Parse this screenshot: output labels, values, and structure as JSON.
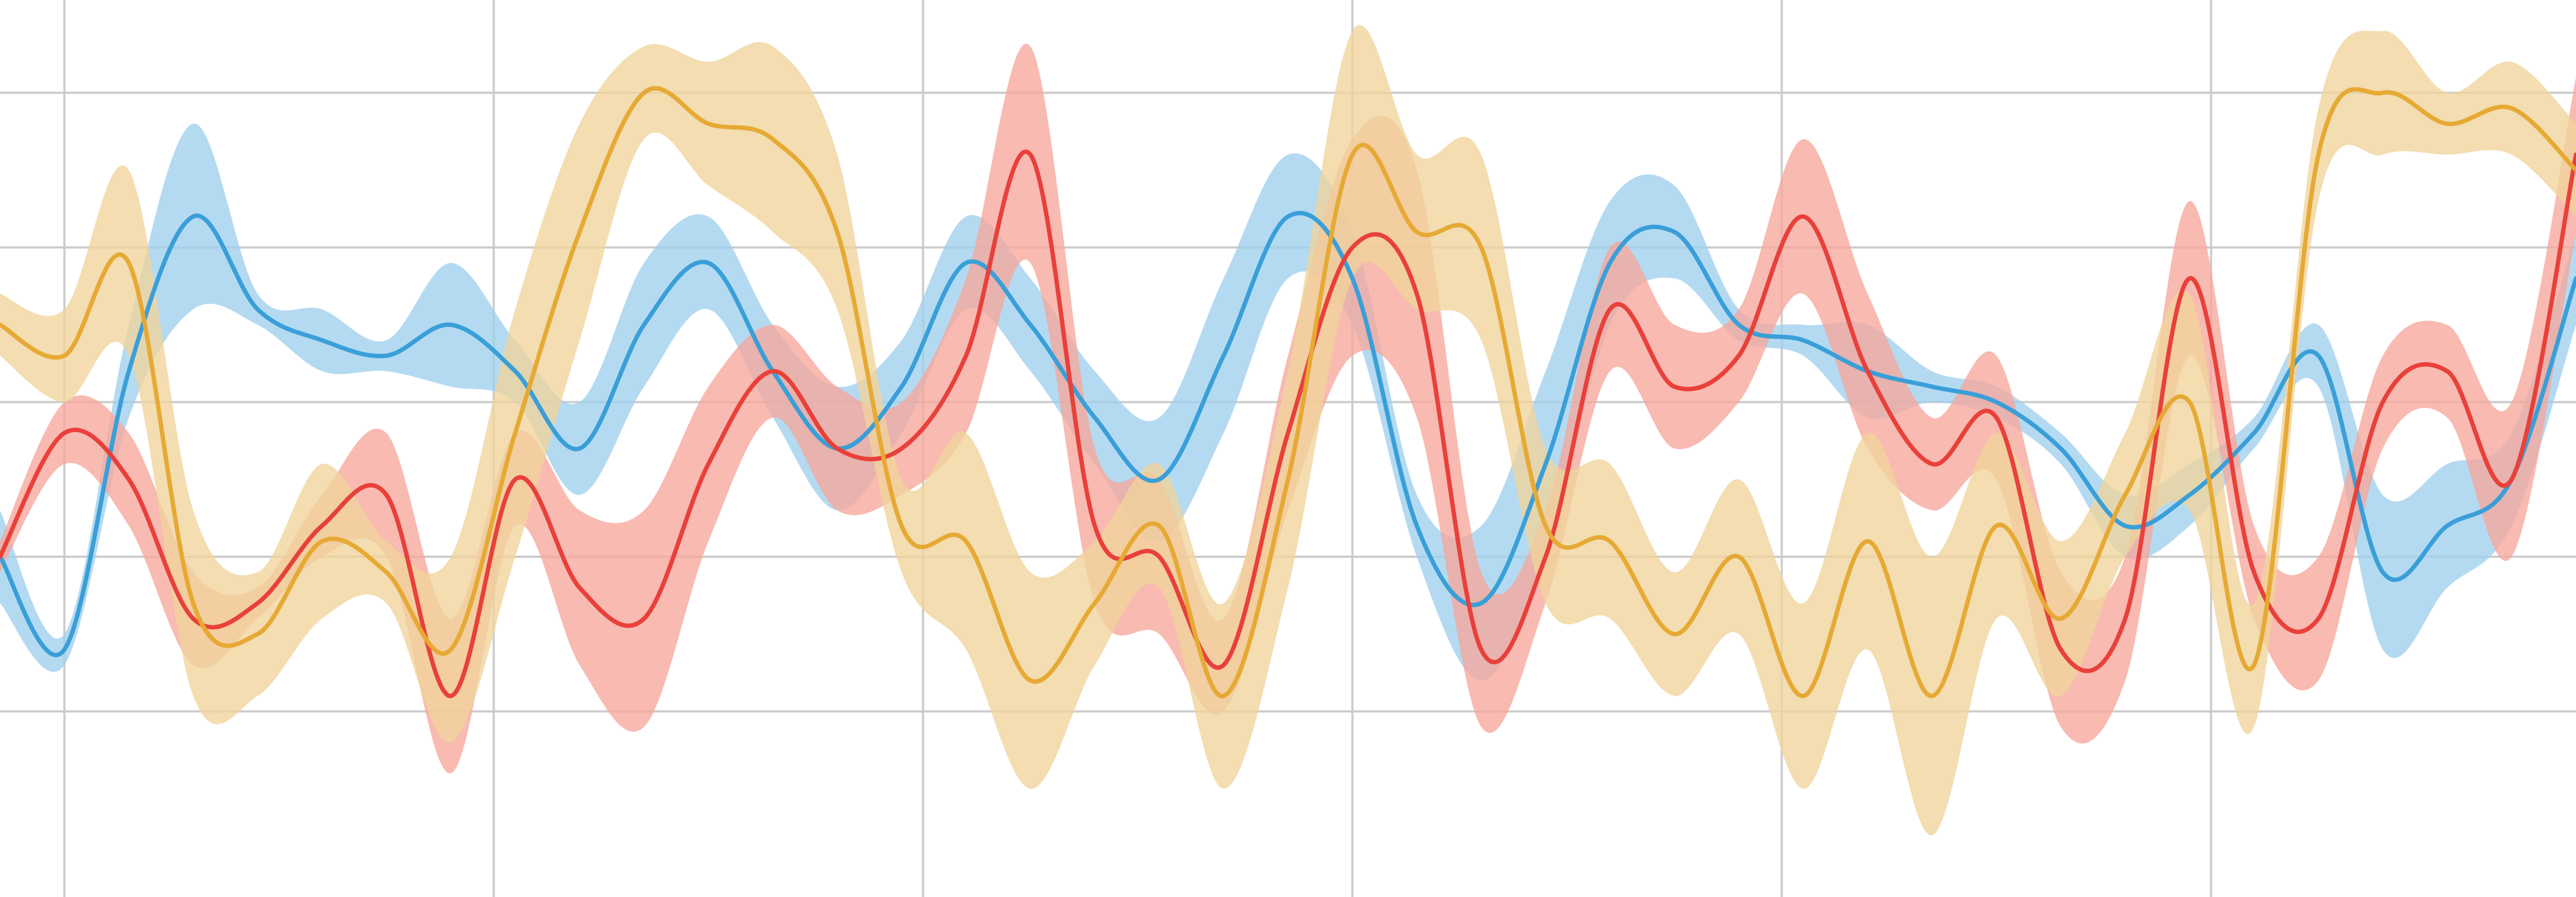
{
  "chart_data": {
    "type": "line",
    "title": "",
    "xlabel": "",
    "ylabel": "",
    "xlim": [
      0,
      120
    ],
    "ylim": [
      -3.2,
      2.6
    ],
    "grid": true,
    "legend": "none",
    "x_ticks": [
      3,
      23,
      43,
      63,
      83,
      103
    ],
    "y_ticks": [
      -2.0,
      -1.0,
      0.0,
      1.0,
      2.0
    ],
    "colors": {
      "grid": "#cccccc",
      "series": [
        "#3a9fd8",
        "#e9403a",
        "#e6a933"
      ],
      "bands": [
        "#9fd0ee",
        "#f6a79b",
        "#f0d49b"
      ]
    },
    "x": [
      0,
      3,
      6,
      9,
      12,
      15,
      18,
      21,
      24,
      27,
      30,
      33,
      36,
      39,
      42,
      45,
      48,
      51,
      54,
      57,
      60,
      63,
      66,
      69,
      72,
      75,
      78,
      81,
      84,
      87,
      90,
      93,
      96,
      99,
      102,
      105,
      108,
      111,
      114,
      117,
      120
    ],
    "series": [
      {
        "values": [
          -1.0,
          -1.6,
          0.2,
          1.2,
          0.6,
          0.4,
          0.3,
          0.5,
          0.2,
          -0.3,
          0.5,
          0.9,
          0.2,
          -0.3,
          0.1,
          0.9,
          0.5,
          -0.1,
          -0.5,
          0.3,
          1.2,
          0.8,
          -0.8,
          -1.3,
          -0.4,
          0.9,
          1.1,
          0.5,
          0.4,
          0.2,
          0.1,
          0.0,
          -0.3,
          -0.8,
          -0.6,
          -0.2,
          0.3,
          -1.1,
          -0.8,
          -0.5,
          0.8
        ],
        "band": [
          0.3,
          0.1,
          0.3,
          0.6,
          0.1,
          0.2,
          0.1,
          0.4,
          0.2,
          0.3,
          0.4,
          0.3,
          0.3,
          0.4,
          0.3,
          0.3,
          0.3,
          0.3,
          0.4,
          0.5,
          0.4,
          0.3,
          0.2,
          0.5,
          0.6,
          0.4,
          0.3,
          0.1,
          0.1,
          0.3,
          0.1,
          0.1,
          0.1,
          0.2,
          0.2,
          0.1,
          0.2,
          0.5,
          0.4,
          0.3,
          0.3
        ]
      },
      {
        "values": [
          -1.0,
          -0.2,
          -0.5,
          -1.4,
          -1.3,
          -0.8,
          -0.6,
          -1.9,
          -0.5,
          -1.2,
          -1.4,
          -0.4,
          0.2,
          -0.3,
          -0.3,
          0.3,
          1.6,
          -0.8,
          -1.0,
          -1.7,
          -0.2,
          1.0,
          0.7,
          -1.6,
          -1.0,
          0.6,
          0.1,
          0.3,
          1.2,
          0.2,
          -0.4,
          -0.1,
          -1.6,
          -1.4,
          0.8,
          -1.1,
          -1.4,
          0.0,
          0.2,
          -0.5,
          1.6
        ],
        "band": [
          0.1,
          0.2,
          0.3,
          0.3,
          0.1,
          0.2,
          0.4,
          0.5,
          0.3,
          0.5,
          0.7,
          0.5,
          0.3,
          0.4,
          0.3,
          0.5,
          0.7,
          0.5,
          0.5,
          0.3,
          0.5,
          0.7,
          0.8,
          0.5,
          0.3,
          0.4,
          0.4,
          0.3,
          0.5,
          0.5,
          0.3,
          0.4,
          0.5,
          0.4,
          0.5,
          0.3,
          0.4,
          0.3,
          0.3,
          0.5,
          0.5
        ]
      },
      {
        "values": [
          0.5,
          0.3,
          0.9,
          -1.3,
          -1.5,
          -0.9,
          -1.1,
          -1.6,
          -0.2,
          1.1,
          2.0,
          1.8,
          1.7,
          1.1,
          -0.8,
          -0.9,
          -1.8,
          -1.3,
          -0.8,
          -1.9,
          -0.5,
          1.6,
          1.1,
          1.0,
          -0.8,
          -0.9,
          -1.5,
          -1.0,
          -1.9,
          -0.9,
          -1.9,
          -0.8,
          -1.4,
          -0.6,
          0.0,
          -1.7,
          1.6,
          2.0,
          1.8,
          1.9,
          1.5
        ],
        "band": [
          0.2,
          0.3,
          0.6,
          0.6,
          0.4,
          0.5,
          0.2,
          0.6,
          0.8,
          0.7,
          0.3,
          0.4,
          0.6,
          0.5,
          0.3,
          0.7,
          0.7,
          0.4,
          0.4,
          0.6,
          0.7,
          0.8,
          0.5,
          0.6,
          0.5,
          0.5,
          0.4,
          0.5,
          0.6,
          0.7,
          0.9,
          0.6,
          0.5,
          0.4,
          0.7,
          0.4,
          0.3,
          0.4,
          0.2,
          0.3,
          0.3
        ]
      }
    ]
  }
}
